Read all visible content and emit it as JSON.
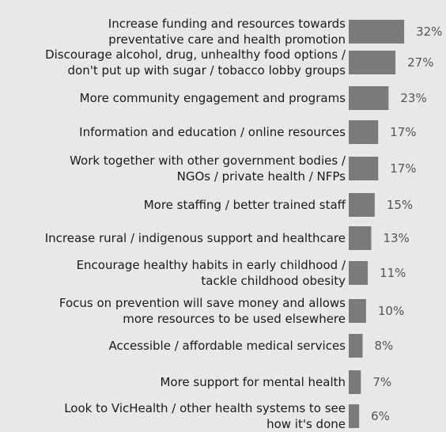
{
  "chart_data": {
    "type": "bar",
    "orientation": "horizontal",
    "title": "",
    "xlabel": "",
    "ylabel": "",
    "xlim": [
      0,
      32
    ],
    "grid": false,
    "legend": "none",
    "categories": [
      [
        "Increase funding and resources towards",
        "preventative care and health promotion"
      ],
      [
        "Discourage alcohol, drug, unhealthy food options /",
        "don't put up with sugar / tobacco lobby groups"
      ],
      [
        "More community engagement and programs"
      ],
      [
        "Information and education / online resources"
      ],
      [
        "Work together with other government bodies /",
        "NGOs / private health / NFPs"
      ],
      [
        "More staffing / better trained staff"
      ],
      [
        "Increase rural / indigenous support and healthcare"
      ],
      [
        "Encourage healthy habits in early childhood /",
        "tackle childhood obesity"
      ],
      [
        "Focus on prevention will save money and allows",
        "more resources to be used elsewhere"
      ],
      [
        "Accessible / affordable medical services"
      ],
      [
        "More support for mental health"
      ],
      [
        "Look to VicHealth / other health systems to see",
        "how it's done"
      ]
    ],
    "values": [
      32,
      27,
      23,
      17,
      17,
      15,
      13,
      11,
      10,
      8,
      7,
      6
    ],
    "value_labels": [
      "32%",
      "27%",
      "23%",
      "17%",
      "17%",
      "15%",
      "13%",
      "11%",
      "10%",
      "8%",
      "7%",
      "6%"
    ],
    "colors": {
      "bar": "#7a7a7a",
      "background": "#e8e8e8",
      "label": "#1a1a1a",
      "value": "#555555"
    }
  }
}
